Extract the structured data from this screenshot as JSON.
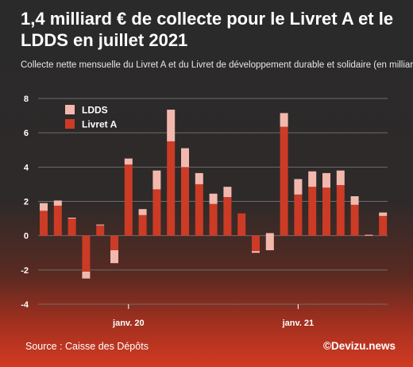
{
  "header": {
    "title": "1,4 milliard € de collecte pour le Livret A et le LDDS en juillet 2021",
    "subtitle": "Collecte nette mensuelle du Livret A et du Livret de développement durable et solidaire (en milliards €)"
  },
  "footer": {
    "source": "Source : Caisse des Dépôts",
    "credit": "©Devizu.news"
  },
  "colors": {
    "livret_a": "#cc3b25",
    "ldds": "#f2b8ae",
    "grid": "#6d6d6d",
    "text": "#ffffff"
  },
  "chart_data": {
    "type": "bar",
    "stacked": true,
    "categories": [
      "2019-07",
      "2019-08",
      "2019-09",
      "2019-10",
      "2019-11",
      "2019-12",
      "2020-01",
      "2020-02",
      "2020-03",
      "2020-04",
      "2020-05",
      "2020-06",
      "2020-07",
      "2020-08",
      "2020-09",
      "2020-10",
      "2020-11",
      "2020-12",
      "2021-01",
      "2021-02",
      "2021-03",
      "2021-04",
      "2021-05",
      "2021-06",
      "2021-07"
    ],
    "x_tick_labels": [
      {
        "category": "2020-01",
        "label": "janv. 20"
      },
      {
        "category": "2021-01",
        "label": "janv. 21"
      }
    ],
    "series": [
      {
        "name": "Livret A",
        "color": "#cc3b25",
        "values": [
          1.45,
          1.75,
          1.05,
          -2.1,
          0.6,
          -1.6,
          4.15,
          1.2,
          2.7,
          5.5,
          4.0,
          3.0,
          1.85,
          2.25,
          1.3,
          -0.9,
          -0.85,
          6.35,
          2.4,
          2.85,
          2.8,
          2.95,
          1.8,
          0.05,
          1.15
        ]
      },
      {
        "name": "LDDS",
        "color": "#f2b8ae",
        "values": [
          0.45,
          0.3,
          -0.05,
          -0.4,
          0.05,
          0.75,
          0.35,
          0.35,
          1.1,
          1.85,
          1.1,
          0.65,
          0.6,
          0.6,
          0.0,
          -0.1,
          1.0,
          0.8,
          0.9,
          0.9,
          0.85,
          0.85,
          0.5,
          -0.05,
          0.2
        ]
      }
    ],
    "ylim": [
      -4,
      8
    ],
    "yticks": [
      -4,
      -2,
      0,
      2,
      4,
      6,
      8
    ],
    "grid": true,
    "legend": "top-left"
  }
}
